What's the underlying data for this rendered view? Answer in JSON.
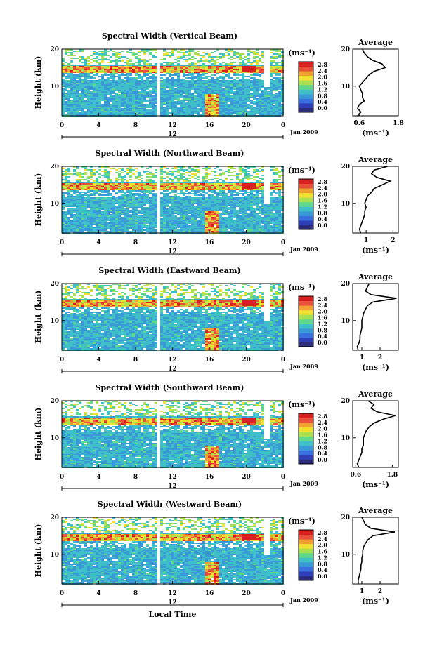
{
  "x_axis_label": "Local Time",
  "date_label": "Jan 2009",
  "y_axis_label": "Height (km)",
  "colorbar_unit": "(ms⁻¹)",
  "average_title": "Average",
  "average_unit": "(ms⁻¹)",
  "colorbar_ticks": [
    "0.0",
    "0.4",
    "0.8",
    "1.2",
    "1.6",
    "2.0",
    "2.4",
    "2.8"
  ],
  "colorbar_colors": [
    "#2c2c7a",
    "#2e3fb8",
    "#3a6fe0",
    "#3a9ad8",
    "#3fc0c8",
    "#5fd88a",
    "#a8e050",
    "#f0e030",
    "#f0a030",
    "#e8503a",
    "#d82020"
  ],
  "chart_data": [
    {
      "type": "heatmap",
      "title": "Spectral Width (Vertical Beam)",
      "ylabel": "Height (km)",
      "xlabel": "Local Time",
      "x_ticks": [
        "0",
        "4",
        "8",
        "12",
        "16",
        "20",
        "0"
      ],
      "x_second_tick": "12",
      "y_ticks": [
        "10",
        "20"
      ],
      "xlim": [
        0,
        24
      ],
      "ylim": [
        2,
        20
      ],
      "colorbar_range": [
        0.0,
        2.8
      ],
      "average_profile": {
        "x_ticks": [
          "0.6",
          "1.8"
        ],
        "xlim": [
          0.4,
          1.8
        ],
        "height_km": [
          2,
          3,
          4,
          5,
          6,
          7,
          8,
          9,
          10,
          11,
          12,
          13,
          14,
          15,
          16,
          17,
          18,
          19,
          20
        ],
        "value": [
          0.55,
          0.65,
          0.55,
          0.6,
          0.75,
          0.7,
          0.7,
          0.65,
          0.6,
          0.7,
          0.8,
          0.9,
          1.05,
          1.4,
          1.3,
          1.0,
          0.85,
          0.75,
          0.7
        ]
      }
    },
    {
      "type": "heatmap",
      "title": "Spectral Width (Northward Beam)",
      "ylabel": "Height (km)",
      "xlabel": "Local Time",
      "x_ticks": [
        "0",
        "4",
        "8",
        "12",
        "16",
        "20",
        "0"
      ],
      "x_second_tick": "12",
      "y_ticks": [
        "10",
        "20"
      ],
      "xlim": [
        0,
        24
      ],
      "ylim": [
        2,
        20
      ],
      "colorbar_range": [
        0.0,
        2.8
      ],
      "average_profile": {
        "x_ticks": [
          "1",
          "2"
        ],
        "xlim": [
          0.5,
          2.2
        ],
        "height_km": [
          2,
          3,
          4,
          5,
          6,
          7,
          8,
          9,
          10,
          11,
          12,
          13,
          14,
          15,
          16,
          17,
          18,
          19,
          20
        ],
        "value": [
          0.8,
          0.75,
          0.8,
          0.85,
          0.9,
          0.95,
          0.95,
          1.0,
          0.95,
          1.0,
          1.05,
          1.2,
          1.3,
          1.6,
          1.9,
          1.4,
          1.2,
          1.3,
          1.8
        ]
      }
    },
    {
      "type": "heatmap",
      "title": "Spectral Width (Eastward Beam)",
      "ylabel": "Height (km)",
      "xlabel": "Local Time",
      "x_ticks": [
        "0",
        "4",
        "8",
        "12",
        "16",
        "20",
        "0"
      ],
      "x_second_tick": "12",
      "y_ticks": [
        "10",
        "20"
      ],
      "xlim": [
        0,
        24
      ],
      "ylim": [
        2,
        20
      ],
      "colorbar_range": [
        0.0,
        2.8
      ],
      "average_profile": {
        "x_ticks": [
          "1",
          "2"
        ],
        "xlim": [
          0.5,
          3.0
        ],
        "height_km": [
          2,
          3,
          4,
          5,
          6,
          7,
          8,
          9,
          10,
          11,
          12,
          13,
          14,
          15,
          16,
          17,
          18,
          19,
          20
        ],
        "value": [
          0.8,
          0.75,
          0.85,
          0.9,
          0.9,
          0.95,
          1.0,
          1.0,
          1.0,
          1.05,
          1.1,
          1.2,
          1.3,
          1.6,
          2.9,
          1.5,
          1.2,
          1.3,
          1.4
        ]
      }
    },
    {
      "type": "heatmap",
      "title": "Spectral Width (Southward Beam)",
      "ylabel": "Height (km)",
      "xlabel": "Local Time",
      "x_ticks": [
        "0",
        "4",
        "8",
        "12",
        "16",
        "20",
        "0"
      ],
      "x_second_tick": "12",
      "y_ticks": [
        "10",
        "20"
      ],
      "xlim": [
        0,
        24
      ],
      "ylim": [
        2,
        20
      ],
      "colorbar_range": [
        0.0,
        2.8
      ],
      "average_profile": {
        "x_ticks": [
          "0.6",
          "1.8"
        ],
        "xlim": [
          0.5,
          2.0
        ],
        "height_km": [
          2,
          3,
          4,
          5,
          6,
          7,
          8,
          9,
          10,
          11,
          12,
          13,
          14,
          15,
          16,
          17,
          18,
          19,
          20
        ],
        "value": [
          0.7,
          0.65,
          0.7,
          0.75,
          0.8,
          0.8,
          0.85,
          0.85,
          0.85,
          0.9,
          0.95,
          1.05,
          1.2,
          1.5,
          1.9,
          1.3,
          1.1,
          1.2,
          1.0
        ]
      }
    },
    {
      "type": "heatmap",
      "title": "Spectral Width (Westward Beam)",
      "ylabel": "Height (km)",
      "xlabel": "Local Time",
      "x_ticks": [
        "0",
        "4",
        "8",
        "12",
        "16",
        "20",
        "0"
      ],
      "x_second_tick": "12",
      "y_ticks": [
        "10",
        "20"
      ],
      "xlim": [
        0,
        24
      ],
      "ylim": [
        2,
        20
      ],
      "colorbar_range": [
        0.0,
        2.8
      ],
      "average_profile": {
        "x_ticks": [
          "1",
          "2"
        ],
        "xlim": [
          0.5,
          3.0
        ],
        "height_km": [
          2,
          3,
          4,
          5,
          6,
          7,
          8,
          9,
          10,
          11,
          12,
          13,
          14,
          15,
          16,
          17,
          18,
          19,
          20
        ],
        "value": [
          0.8,
          0.8,
          0.85,
          0.9,
          0.95,
          0.95,
          1.0,
          1.0,
          1.05,
          1.05,
          1.1,
          1.2,
          1.35,
          1.6,
          2.8,
          1.5,
          1.2,
          1.1,
          1.0
        ]
      }
    }
  ]
}
